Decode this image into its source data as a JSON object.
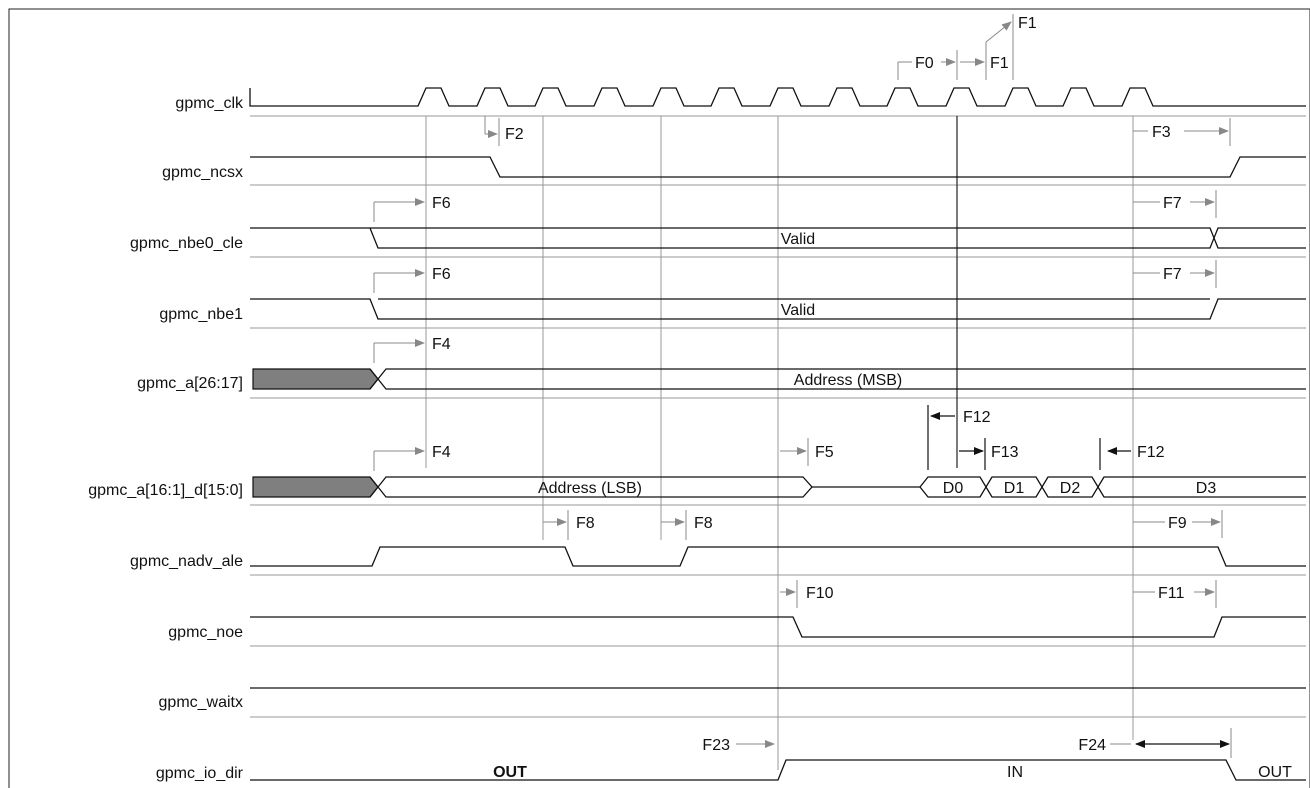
{
  "signals": [
    {
      "id": "clk",
      "label": "gpmc_clk"
    },
    {
      "id": "ncsx",
      "label": "gpmc_ncsx"
    },
    {
      "id": "nbe0",
      "label": "gpmc_nbe0_cle"
    },
    {
      "id": "nbe1",
      "label": "gpmc_nbe1"
    },
    {
      "id": "amsb",
      "label": "gpmc_a[26:17]"
    },
    {
      "id": "ad",
      "label": "gpmc_a[16:1]_d[15:0]"
    },
    {
      "id": "nadv",
      "label": "gpmc_nadv_ale"
    },
    {
      "id": "noe",
      "label": "gpmc_noe"
    },
    {
      "id": "wait",
      "label": "gpmc_waitx"
    },
    {
      "id": "iodir",
      "label": "gpmc_io_dir"
    }
  ],
  "bus_text": {
    "nbe0": "Valid",
    "nbe1": "Valid",
    "amsb": "Address (MSB)",
    "ad_addr": "Address (LSB)",
    "d0": "D0",
    "d1": "D1",
    "d2": "D2",
    "d3": "D3",
    "io_out1": "OUT",
    "io_in": "IN",
    "io_out2": "OUT"
  },
  "timing_params": {
    "f0": "F0",
    "f1": "F1",
    "f2": "F2",
    "f3": "F3",
    "f4": "F4",
    "f5": "F5",
    "f6": "F6",
    "f7": "F7",
    "f8": "F8",
    "f9": "F9",
    "f10": "F10",
    "f11": "F11",
    "f12": "F12",
    "f13": "F13",
    "f23": "F23",
    "f24": "F24"
  },
  "colors": {
    "waveform": "#111111",
    "reference_line": "#999999",
    "annotation_arrow": "#888888",
    "shaded_bus": "#7f7f7f"
  }
}
